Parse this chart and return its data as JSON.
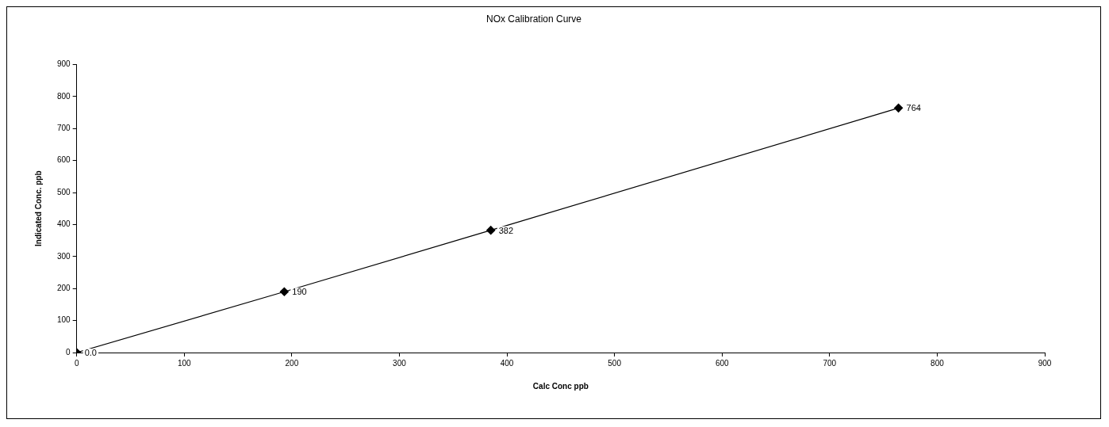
{
  "chart_data": {
    "type": "line",
    "title": "NOx Calibration Curve",
    "xlabel": "Calc Conc ppb",
    "ylabel": "Indicated Conc. ppb",
    "x": [
      0,
      193,
      385,
      764
    ],
    "series": [
      {
        "color": "#000000",
        "values": [
          0,
          190,
          382,
          764
        ],
        "value_labels": [
          "0.0",
          "190",
          "382",
          "764"
        ]
      }
    ],
    "xlim": [
      0,
      900
    ],
    "xticks": [
      0,
      100,
      200,
      300,
      400,
      500,
      600,
      700,
      800,
      900
    ],
    "ylim": [
      0,
      900
    ],
    "yticks": [
      0,
      100,
      200,
      300,
      400,
      500,
      600,
      700,
      800,
      900
    ],
    "grid": false,
    "legend": false,
    "marker": "diamond",
    "line_style": "solid"
  }
}
